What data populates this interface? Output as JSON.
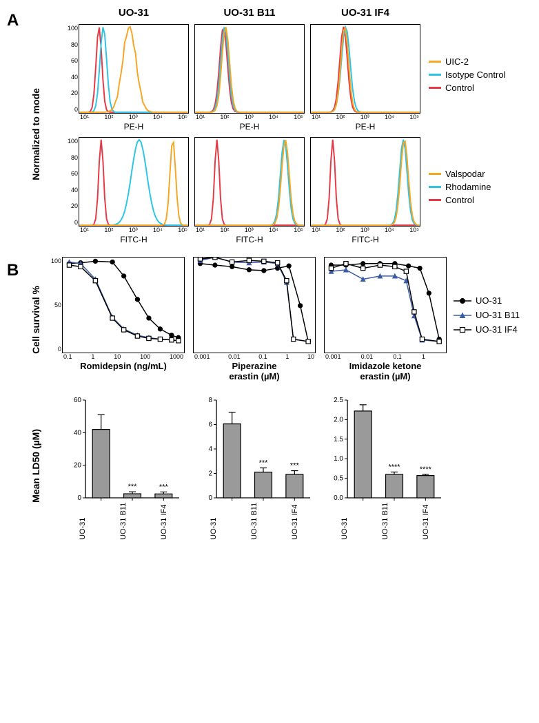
{
  "panelA": {
    "label": "A",
    "ylabel": "Normalized to mode",
    "titles": [
      "UO-31",
      "UO-31 B11",
      "UO-31 IF4"
    ],
    "yticks": [
      0,
      20,
      40,
      60,
      80,
      100
    ],
    "row1": {
      "xlabel": "PE-H",
      "xticks": [
        "10¹",
        "10²",
        "10³",
        "10⁴",
        "10⁵"
      ],
      "legend": [
        {
          "label": "UIC-2",
          "color": "#f5a623"
        },
        {
          "label": "Isotype Control",
          "color": "#2ec4e6"
        },
        {
          "label": "Control",
          "color": "#e63946"
        }
      ],
      "curves": [
        [
          {
            "color": "#e63946",
            "peak_x": 0.18,
            "width": 0.06
          },
          {
            "color": "#2ec4e6",
            "peak_x": 0.22,
            "width": 0.07
          },
          {
            "color": "#f5a623",
            "peak_x": 0.46,
            "width": 0.14,
            "jagged": true
          }
        ],
        [
          {
            "color": "#e63946",
            "peak_x": 0.26,
            "width": 0.08
          },
          {
            "color": "#2ec4e6",
            "peak_x": 0.27,
            "width": 0.08
          },
          {
            "color": "#f5a623",
            "peak_x": 0.28,
            "width": 0.08
          }
        ],
        [
          {
            "color": "#e63946",
            "peak_x": 0.3,
            "width": 0.08
          },
          {
            "color": "#2ec4e6",
            "peak_x": 0.32,
            "width": 0.09
          },
          {
            "color": "#f5a623",
            "peak_x": 0.31,
            "width": 0.08
          }
        ]
      ]
    },
    "row2": {
      "xlabel": "FITC-H",
      "xticks": [
        "10¹",
        "10²",
        "10³",
        "10⁴",
        "10⁵"
      ],
      "legend": [
        {
          "label": "Valspodar",
          "color": "#f5a623"
        },
        {
          "label": "Rhodamine",
          "color": "#2ec4e6"
        },
        {
          "label": "Control",
          "color": "#e63946"
        }
      ],
      "curves": [
        [
          {
            "color": "#e63946",
            "peak_x": 0.2,
            "width": 0.05
          },
          {
            "color": "#2ec4e6",
            "peak_x": 0.55,
            "width": 0.16
          },
          {
            "color": "#f5a623",
            "peak_x": 0.86,
            "width": 0.06
          }
        ],
        [
          {
            "color": "#e63946",
            "peak_x": 0.2,
            "width": 0.05
          },
          {
            "color": "#2ec4e6",
            "peak_x": 0.82,
            "width": 0.08
          },
          {
            "color": "#f5a623",
            "peak_x": 0.83,
            "width": 0.08
          }
        ],
        [
          {
            "color": "#e63946",
            "peak_x": 0.2,
            "width": 0.05
          },
          {
            "color": "#2ec4e6",
            "peak_x": 0.85,
            "width": 0.08
          },
          {
            "color": "#f5a623",
            "peak_x": 0.86,
            "width": 0.08
          }
        ]
      ]
    }
  },
  "panelB": {
    "label": "B",
    "dose": {
      "ylabel": "Cell survival %",
      "yticks": [
        0,
        50,
        100
      ],
      "legend": [
        {
          "label": "UO-31",
          "marker": "circle-filled",
          "color": "#000000"
        },
        {
          "label": "UO-31 B11",
          "marker": "triangle-filled",
          "color": "#3b5ba5"
        },
        {
          "label": "UO-31 IF4",
          "marker": "square-open",
          "color": "#000000"
        }
      ],
      "panels": [
        {
          "xlabel": "Romidepsin (ng/mL)",
          "xticks": [
            "0.1",
            "1",
            "10",
            "100",
            "1000"
          ],
          "series": [
            {
              "key": "UO-31",
              "color": "#000000",
              "marker": "circle-filled",
              "points": [
                [
                  0.02,
                  1.02
                ],
                [
                  0.12,
                  1.03
                ],
                [
                  0.25,
                  1.05
                ],
                [
                  0.4,
                  1.04
                ],
                [
                  0.5,
                  0.86
                ],
                [
                  0.62,
                  0.56
                ],
                [
                  0.72,
                  0.32
                ],
                [
                  0.82,
                  0.18
                ],
                [
                  0.92,
                  0.1
                ],
                [
                  0.98,
                  0.07
                ]
              ]
            },
            {
              "key": "UO-31 B11",
              "color": "#3b5ba5",
              "marker": "triangle-filled",
              "points": [
                [
                  0.02,
                  1.04
                ],
                [
                  0.12,
                  1.02
                ],
                [
                  0.25,
                  0.82
                ],
                [
                  0.4,
                  0.33
                ],
                [
                  0.5,
                  0.18
                ],
                [
                  0.62,
                  0.1
                ],
                [
                  0.72,
                  0.07
                ],
                [
                  0.82,
                  0.05
                ],
                [
                  0.92,
                  0.04
                ],
                [
                  0.98,
                  0.03
                ]
              ]
            },
            {
              "key": "UO-31 IF4",
              "color": "#000000",
              "marker": "square-open",
              "points": [
                [
                  0.02,
                  1.0
                ],
                [
                  0.12,
                  0.98
                ],
                [
                  0.25,
                  0.8
                ],
                [
                  0.4,
                  0.32
                ],
                [
                  0.5,
                  0.17
                ],
                [
                  0.62,
                  0.09
                ],
                [
                  0.72,
                  0.06
                ],
                [
                  0.82,
                  0.05
                ],
                [
                  0.92,
                  0.04
                ],
                [
                  0.98,
                  0.03
                ]
              ]
            }
          ]
        },
        {
          "xlabel": "Piperazine erastin (µM)",
          "xticks": [
            "0.001",
            "0.01",
            "0.1",
            "1",
            "10"
          ],
          "series": [
            {
              "key": "UO-31",
              "color": "#000000",
              "marker": "circle-filled",
              "points": [
                [
                  0.02,
                  1.02
                ],
                [
                  0.15,
                  1.0
                ],
                [
                  0.3,
                  0.98
                ],
                [
                  0.45,
                  0.94
                ],
                [
                  0.58,
                  0.93
                ],
                [
                  0.7,
                  0.96
                ],
                [
                  0.8,
                  0.99
                ],
                [
                  0.9,
                  0.48
                ],
                [
                  0.97,
                  0.02
                ]
              ]
            },
            {
              "key": "UO-31 B11",
              "color": "#3b5ba5",
              "marker": "triangle-filled",
              "points": [
                [
                  0.02,
                  1.06
                ],
                [
                  0.15,
                  1.1
                ],
                [
                  0.3,
                  1.04
                ],
                [
                  0.45,
                  1.03
                ],
                [
                  0.58,
                  1.04
                ],
                [
                  0.7,
                  1.02
                ],
                [
                  0.78,
                  0.78
                ],
                [
                  0.84,
                  0.05
                ],
                [
                  0.97,
                  0.02
                ]
              ]
            },
            {
              "key": "UO-31 IF4",
              "color": "#000000",
              "marker": "square-open",
              "points": [
                [
                  0.02,
                  1.08
                ],
                [
                  0.15,
                  1.1
                ],
                [
                  0.3,
                  1.04
                ],
                [
                  0.45,
                  1.06
                ],
                [
                  0.58,
                  1.05
                ],
                [
                  0.7,
                  1.03
                ],
                [
                  0.78,
                  0.8
                ],
                [
                  0.84,
                  0.05
                ],
                [
                  0.97,
                  0.02
                ]
              ]
            }
          ]
        },
        {
          "xlabel": "Imidazole ketone erastin (µM)",
          "xticks": [
            "0.001",
            "0.01",
            "0.1",
            "1",
            ""
          ],
          "series": [
            {
              "key": "UO-31",
              "color": "#000000",
              "marker": "circle-filled",
              "points": [
                [
                  0.02,
                  1.0
                ],
                [
                  0.15,
                  1.0
                ],
                [
                  0.3,
                  1.02
                ],
                [
                  0.45,
                  1.02
                ],
                [
                  0.58,
                  1.02
                ],
                [
                  0.7,
                  0.99
                ],
                [
                  0.8,
                  0.96
                ],
                [
                  0.88,
                  0.64
                ],
                [
                  0.97,
                  0.05
                ]
              ]
            },
            {
              "key": "UO-31 B11",
              "color": "#3b5ba5",
              "marker": "triangle-filled",
              "points": [
                [
                  0.02,
                  0.92
                ],
                [
                  0.15,
                  0.94
                ],
                [
                  0.3,
                  0.82
                ],
                [
                  0.45,
                  0.86
                ],
                [
                  0.58,
                  0.86
                ],
                [
                  0.68,
                  0.8
                ],
                [
                  0.75,
                  0.35
                ],
                [
                  0.82,
                  0.04
                ],
                [
                  0.97,
                  0.02
                ]
              ]
            },
            {
              "key": "UO-31 IF4",
              "color": "#000000",
              "marker": "square-open",
              "points": [
                [
                  0.02,
                  0.96
                ],
                [
                  0.15,
                  1.02
                ],
                [
                  0.3,
                  0.96
                ],
                [
                  0.45,
                  1.0
                ],
                [
                  0.58,
                  0.98
                ],
                [
                  0.68,
                  0.92
                ],
                [
                  0.75,
                  0.4
                ],
                [
                  0.82,
                  0.05
                ],
                [
                  0.97,
                  0.02
                ]
              ]
            }
          ]
        }
      ]
    },
    "bars": {
      "ylabel": "Mean LD50 (µM)",
      "panels": [
        {
          "ymax": 60,
          "ytick_step": 20,
          "bars": [
            {
              "label": "UO-31",
              "value": 42,
              "err": 9,
              "sig": ""
            },
            {
              "label": "UO-31 B11",
              "value": 2.5,
              "err": 1.2,
              "sig": "***"
            },
            {
              "label": "UO-31 IF4",
              "value": 2.4,
              "err": 1.2,
              "sig": "***"
            }
          ]
        },
        {
          "ymax": 8,
          "ytick_step": 2,
          "bars": [
            {
              "label": "UO-31",
              "value": 6.05,
              "err": 0.95,
              "sig": ""
            },
            {
              "label": "UO-31 B11",
              "value": 2.1,
              "err": 0.35,
              "sig": "***"
            },
            {
              "label": "UO-31 IF4",
              "value": 1.92,
              "err": 0.3,
              "sig": "***"
            }
          ]
        },
        {
          "ymax": 2.5,
          "ytick_step": 0.5,
          "bars": [
            {
              "label": "UO-31",
              "value": 2.22,
              "err": 0.16,
              "sig": ""
            },
            {
              "label": "UO-31 B11",
              "value": 0.6,
              "err": 0.06,
              "sig": "****"
            },
            {
              "label": "UO-31 IF4",
              "value": 0.57,
              "err": 0.03,
              "sig": "****"
            }
          ]
        }
      ],
      "bar_color": "#9a9a9a",
      "bar_stroke": "#000000"
    }
  }
}
